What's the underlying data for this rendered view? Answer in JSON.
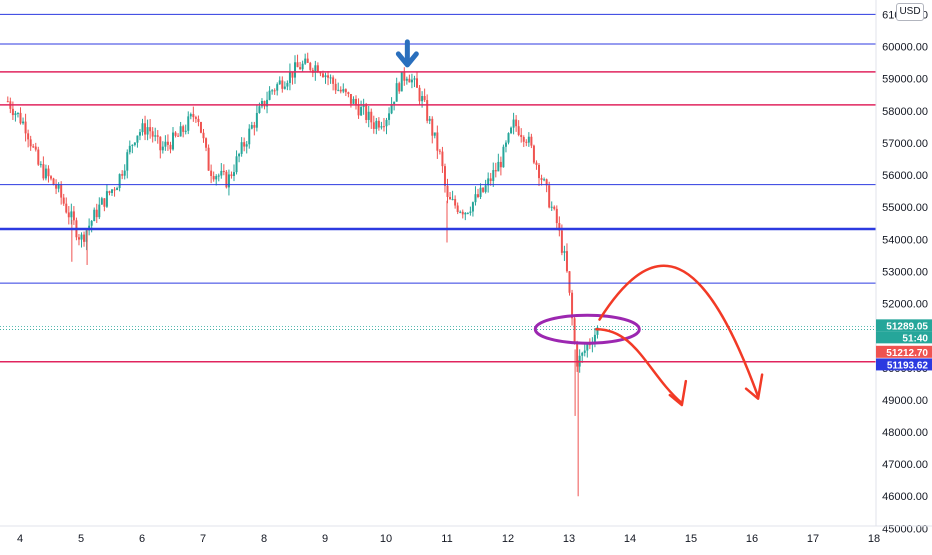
{
  "chart_data": {
    "type": "candlestick",
    "title": "",
    "currency": "USD",
    "price_axis": {
      "min": 44700,
      "max": 61200,
      "ticks": [
        45000,
        46000,
        47000,
        48000,
        49000,
        50000,
        51000,
        52000,
        53000,
        54000,
        55000,
        56000,
        57000,
        58000,
        59000,
        60000,
        61000
      ],
      "tick_labels": [
        "45000.00",
        "46000.00",
        "47000.00",
        "48000.00",
        "49000.00",
        "50000.00",
        "51000.00",
        "52000.00",
        "53000.00",
        "54000.00",
        "55000.00",
        "56000.00",
        "57000.00",
        "58000.00",
        "59000.00",
        "60000.00",
        "61000.00"
      ]
    },
    "time_axis": {
      "min": 3.8,
      "max": 18,
      "tick_values": [
        4,
        5,
        6,
        7,
        8,
        9,
        10,
        11,
        12,
        13,
        14,
        15,
        16,
        17,
        18
      ],
      "tick_labels": [
        "4",
        "5",
        "6",
        "7",
        "8",
        "9",
        "10",
        "11",
        "12",
        "13",
        "14",
        "15",
        "16",
        "17",
        "18"
      ]
    },
    "price_path": [
      [
        3.8,
        58300
      ],
      [
        4.1,
        57500
      ],
      [
        4.3,
        56300
      ],
      [
        4.6,
        55600
      ],
      [
        4.8,
        54800
      ],
      [
        5.0,
        54000
      ],
      [
        5.3,
        55000
      ],
      [
        5.6,
        55800
      ],
      [
        5.9,
        57300
      ],
      [
        6.1,
        57500
      ],
      [
        6.3,
        56800
      ],
      [
        6.6,
        57200
      ],
      [
        6.9,
        58000
      ],
      [
        7.1,
        56200
      ],
      [
        7.4,
        55800
      ],
      [
        7.8,
        57500
      ],
      [
        8.1,
        58600
      ],
      [
        8.4,
        59100
      ],
      [
        8.6,
        59400
      ],
      [
        8.9,
        59400
      ],
      [
        9.2,
        58700
      ],
      [
        9.5,
        58200
      ],
      [
        9.8,
        57600
      ],
      [
        10.0,
        57800
      ],
      [
        10.2,
        58800
      ],
      [
        10.35,
        59210
      ],
      [
        10.6,
        58300
      ],
      [
        10.9,
        56500
      ],
      [
        11.0,
        55200
      ],
      [
        11.3,
        54900
      ],
      [
        11.6,
        55500
      ],
      [
        11.9,
        56500
      ],
      [
        12.1,
        57600
      ],
      [
        12.3,
        57200
      ],
      [
        12.5,
        56200
      ],
      [
        12.8,
        54500
      ],
      [
        12.95,
        53200
      ],
      [
        13.05,
        51500
      ],
      [
        13.12,
        50200
      ],
      [
        13.2,
        50300
      ],
      [
        13.3,
        50700
      ],
      [
        13.4,
        51000
      ],
      [
        13.5,
        51290
      ]
    ],
    "down_candle_dates": [
      4.1,
      4.3,
      4.6,
      4.8,
      5.0,
      6.3,
      7.1,
      7.4,
      9.2,
      9.5,
      9.8,
      10.6,
      10.9,
      11.0,
      12.3,
      12.5,
      12.8,
      12.95,
      13.05,
      13.12
    ],
    "low_wicks": [
      {
        "date": 13.15,
        "price": 46000
      },
      {
        "date": 13.1,
        "price": 48500
      },
      {
        "date": 11.0,
        "price": 53900
      },
      {
        "date": 5.1,
        "price": 53200
      },
      {
        "date": 4.85,
        "price": 53300
      }
    ],
    "horizontal_levels": [
      {
        "label": "60078.32",
        "price": 60078.32,
        "color": "#2c3ae0",
        "width": 1
      },
      {
        "label": "59210.33",
        "price": 59210.33,
        "color": "#e0245e",
        "width": 1.5
      },
      {
        "label": "58184.02",
        "price": 58184.02,
        "color": "#e0245e",
        "width": 1.5
      },
      {
        "label": "55702.81",
        "price": 55702.81,
        "color": "#2c3ae0",
        "width": 1
      },
      {
        "label": "54318.10",
        "price": 54318.1,
        "color": "#2c3ae0",
        "width": 2.5
      },
      {
        "label": "52635.54",
        "price": 52635.54,
        "color": "#2c3ae0",
        "width": 1
      },
      {
        "label": "50185.09",
        "price": 50185.09,
        "color": "#e0245e",
        "width": 1.5
      }
    ],
    "top_level": {
      "label": "60",
      "price": 61000,
      "color": "#2c3ae0"
    },
    "price_labels": [
      {
        "label": "51289.05",
        "price": 51289.05,
        "color": "#26a69a"
      },
      {
        "label": "51:40",
        "price": 51289.05,
        "color": "#26a69a",
        "offset": 1
      },
      {
        "label": "51212.70",
        "price": 51212.7,
        "color": "#ef5350",
        "offset": 2
      },
      {
        "label": "51193.62",
        "price": 51193.62,
        "color": "#2c3ae0",
        "offset": 3
      }
    ],
    "dotted_levels": [
      51289.05,
      51193.62
    ],
    "annotations": [
      {
        "type": "arrow-down",
        "date": 10.35,
        "price": 59210,
        "color": "#2a6fbd"
      },
      {
        "type": "ellipse",
        "date": 13.3,
        "price": 51200,
        "color": "#9c27b0"
      },
      {
        "type": "curve",
        "color": "#f23a26",
        "points": [
          [
            13.5,
            51500
          ],
          [
            14.4,
            54200
          ],
          [
            15.2,
            53800
          ],
          [
            16.1,
            49100
          ]
        ],
        "arrow": true
      },
      {
        "type": "curve",
        "color": "#f23a26",
        "points": [
          [
            13.45,
            51200
          ],
          [
            14.1,
            51200
          ],
          [
            14.3,
            49800
          ],
          [
            14.85,
            48900
          ]
        ],
        "arrow": true
      }
    ],
    "colors": {
      "up": "#26a69a",
      "down": "#ef5350",
      "text": "#131722",
      "grid": "#f0f3fa"
    }
  }
}
